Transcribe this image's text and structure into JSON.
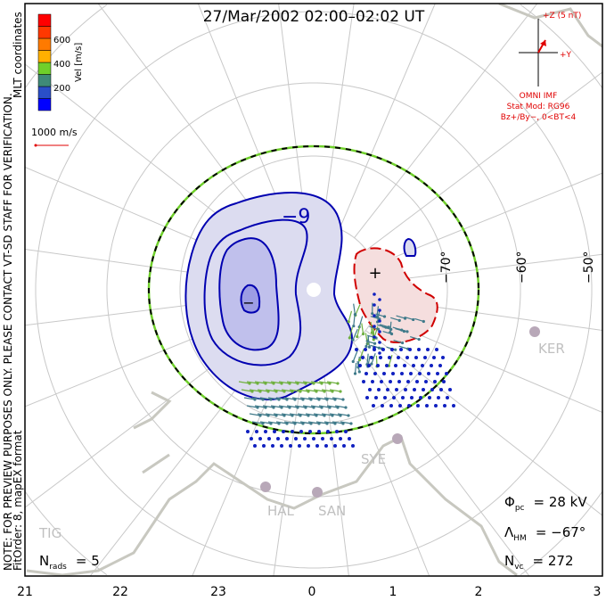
{
  "title": "27/Mar/2002 02:00–02:02 UT",
  "side_note": "NOTE: FOR PREVIEW PURPOSES ONLY. PLEASE CONTACT VT-SD STAFF FOR VERIFICATION.",
  "fit_info": "FitOrder: 8, mapEX format",
  "coords": "MLT coordinates",
  "colorbar": {
    "label": "Vel [m/s]",
    "ticks": [
      "200",
      "400",
      "600"
    ],
    "colors": [
      "#0000ff",
      "#2a4fc8",
      "#3f8a78",
      "#6fd02a",
      "#ffb000",
      "#ff7a00",
      "#ff3800",
      "#ff0000"
    ]
  },
  "scale_vector": "1000 m/s",
  "imf": {
    "z_label": "+Z (5 nT)",
    "y_label": "+Y",
    "source": "OMNI IMF",
    "stat_mod": "Stat Mod: RG96",
    "condition": "Bz+/By−, 0<BT<4"
  },
  "lat_labels": [
    "−70°",
    "−60°",
    "−50°"
  ],
  "contour_label": "−9",
  "min_marker": "−",
  "max_marker": "+",
  "stations": [
    "KER",
    "SYE",
    "HAL",
    "SAN",
    "TIG"
  ],
  "stats": {
    "phi_sym": "Φ",
    "phi_sub": "pc",
    "phi_val": "= 28 kV",
    "lambda_sym": "Λ",
    "lambda_sub": "HM",
    "lambda_val": "= −67°",
    "nvc_sym": "N",
    "nvc_sub": "vc",
    "nvc_val": "= 272",
    "nrads_sym": "N",
    "nrads_sub": "rads",
    "nrads_val": "= 5"
  },
  "mlt_labels": [
    "21",
    "22",
    "23",
    "0",
    "1",
    "2",
    "3"
  ],
  "colors": {
    "neg": "#0000b0",
    "neg_fill": "#dcdcf0",
    "pos": "#d00000",
    "pos_fill": "#f5dede",
    "grid": "#c8c8c8",
    "coast": "#c8c8c0",
    "red": "#e00000"
  }
}
